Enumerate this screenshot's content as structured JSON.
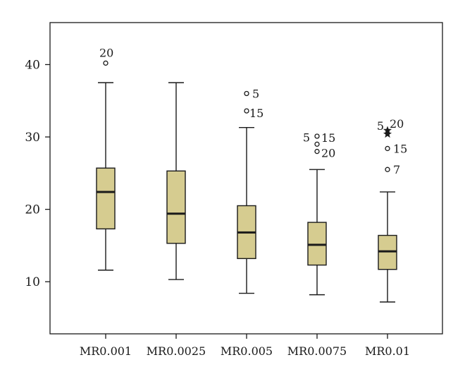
{
  "chart_data": {
    "type": "box",
    "title": "",
    "xlabel": "",
    "ylabel": "",
    "ylim": [
      2.8,
      45.8
    ],
    "yticks": [
      10,
      20,
      30,
      40
    ],
    "grid": false,
    "legend": "none",
    "box_color": "#d6cc90",
    "line_color": "#1a1a1a",
    "categories": [
      "MR0.001",
      "MR0.0025",
      "MR0.005",
      "MR0.0075",
      "MR0.01"
    ],
    "boxes": [
      {
        "category": "MR0.001",
        "whisker_low": 11.6,
        "q1": 17.3,
        "median": 22.4,
        "q3": 25.7,
        "whisker_high": 37.5,
        "outliers": [
          {
            "value": 40.2,
            "label": "20",
            "marker": "circle"
          }
        ]
      },
      {
        "category": "MR0.0025",
        "whisker_low": 10.3,
        "q1": 15.3,
        "median": 19.4,
        "q3": 25.3,
        "whisker_high": 37.5,
        "outliers": []
      },
      {
        "category": "MR0.005",
        "whisker_low": 8.4,
        "q1": 13.2,
        "median": 16.8,
        "q3": 20.5,
        "whisker_high": 31.3,
        "outliers": [
          {
            "value": 36.0,
            "label": "5",
            "marker": "circle"
          },
          {
            "value": 33.6,
            "label": "15",
            "marker": "circle"
          }
        ]
      },
      {
        "category": "MR0.0075",
        "whisker_low": 8.2,
        "q1": 12.3,
        "median": 15.1,
        "q3": 18.2,
        "whisker_high": 25.5,
        "outliers": [
          {
            "value": 30.1,
            "label": "15",
            "marker": "circle"
          },
          {
            "value": 29.0,
            "label": "5",
            "marker": "circle"
          },
          {
            "value": 28.0,
            "label": "20",
            "marker": "circle"
          }
        ]
      },
      {
        "category": "MR0.01",
        "whisker_low": 7.2,
        "q1": 11.7,
        "median": 14.2,
        "q3": 16.4,
        "whisker_high": 22.4,
        "outliers": [
          {
            "value": 30.9,
            "label": "5",
            "marker": "star"
          },
          {
            "value": 30.4,
            "label": "20",
            "marker": "star"
          },
          {
            "value": 28.4,
            "label": "15",
            "marker": "circle"
          },
          {
            "value": 25.5,
            "label": "7",
            "marker": "circle"
          }
        ]
      }
    ]
  }
}
